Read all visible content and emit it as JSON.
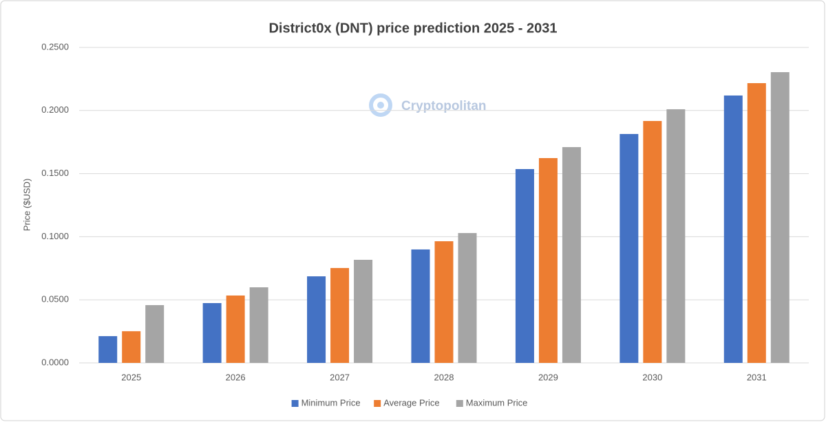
{
  "chart_data": {
    "type": "bar",
    "title": "District0x (DNT) price prediction 2025 - 2031",
    "watermark": "Cryptopolitan",
    "y_label": "Price ($USD)",
    "categories": [
      "2025",
      "2026",
      "2027",
      "2028",
      "2029",
      "2030",
      "2031"
    ],
    "series": [
      {
        "name": "Minimum Price",
        "color": "#4472c4",
        "values": [
          0.0212,
          0.0474,
          0.0686,
          0.0899,
          0.1536,
          0.1814,
          0.2119
        ]
      },
      {
        "name": "Average Price",
        "color": "#ed7d31",
        "values": [
          0.0251,
          0.0534,
          0.0752,
          0.0964,
          0.1623,
          0.1917,
          0.2217
        ]
      },
      {
        "name": "Maximum Price",
        "color": "#a5a5a5",
        "values": [
          0.0458,
          0.0599,
          0.0817,
          0.1029,
          0.171,
          0.201,
          0.2304
        ]
      }
    ],
    "ylim": [
      0,
      0.25
    ],
    "yticks": [
      {
        "value": 0,
        "label": "0.0000"
      },
      {
        "value": 0.05,
        "label": "0.0500"
      },
      {
        "value": 0.1,
        "label": "0.1000"
      },
      {
        "value": 0.15,
        "label": "0.1500"
      },
      {
        "value": 0.2,
        "label": "0.2000"
      },
      {
        "value": 0.25,
        "label": "0.2500"
      }
    ],
    "grid": true,
    "legend": "bottom"
  }
}
